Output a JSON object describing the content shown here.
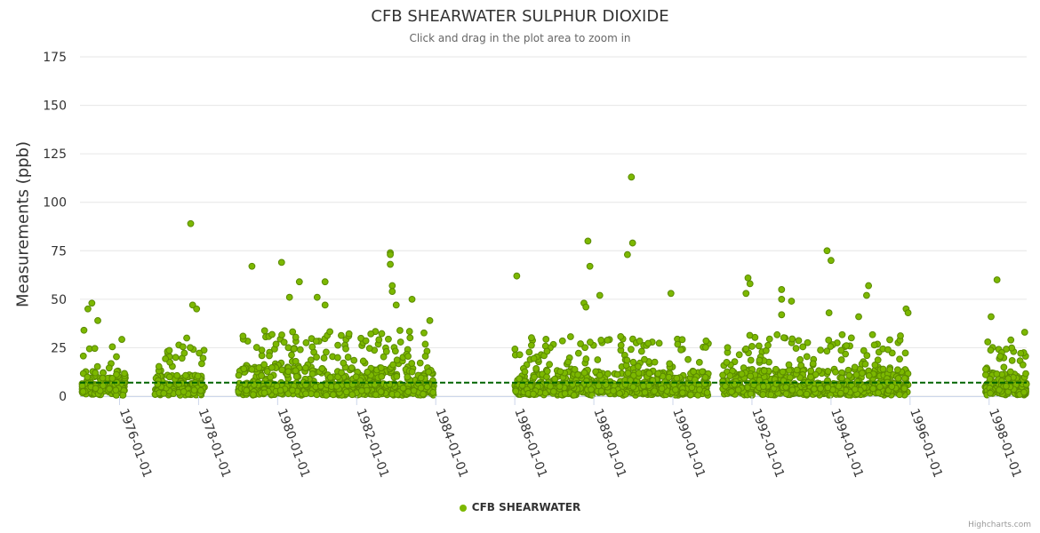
{
  "chart_data": {
    "type": "scatter",
    "title": "CFB SHEARWATER SULPHUR DIOXIDE",
    "subtitle": "Click and drag in the plot area to zoom in",
    "ylabel": "Measurements (ppb)",
    "xlabel": "",
    "ylim": [
      0,
      175
    ],
    "yticks": [
      0,
      25,
      50,
      75,
      100,
      125,
      150,
      175
    ],
    "xlim": [
      1975.0,
      1998.95
    ],
    "xticks": [
      {
        "value": 1976,
        "label": "1976-01-01"
      },
      {
        "value": 1978,
        "label": "1978-01-01"
      },
      {
        "value": 1980,
        "label": "1980-01-01"
      },
      {
        "value": 1982,
        "label": "1982-01-01"
      },
      {
        "value": 1984,
        "label": "1984-01-01"
      },
      {
        "value": 1986,
        "label": "1986-01-01"
      },
      {
        "value": 1988,
        "label": "1988-01-01"
      },
      {
        "value": 1990,
        "label": "1990-01-01"
      },
      {
        "value": 1992,
        "label": "1992-01-01"
      },
      {
        "value": 1994,
        "label": "1994-01-01"
      },
      {
        "value": 1996,
        "label": "1996-01-01"
      },
      {
        "value": 1998,
        "label": "1998-01-01"
      }
    ],
    "reference_line": {
      "value": 7,
      "style": "dashed",
      "color": "#006400"
    },
    "series": [
      {
        "name": "CFB SHEARWATER",
        "color": "#7cb800",
        "segments": [
          {
            "start": 1975.05,
            "end": 1976.15,
            "base": 11,
            "spread": 9
          },
          {
            "start": 1976.9,
            "end": 1978.15,
            "base": 9,
            "spread": 8
          },
          {
            "start": 1979.0,
            "end": 1983.95,
            "base": 13,
            "spread": 11
          },
          {
            "start": 1986.0,
            "end": 1990.9,
            "base": 11,
            "spread": 10
          },
          {
            "start": 1991.25,
            "end": 1995.95,
            "base": 12,
            "spread": 10
          },
          {
            "start": 1997.9,
            "end": 1998.95,
            "base": 10,
            "spread": 8
          }
        ],
        "highlights": [
          {
            "x": 1975.2,
            "y": 45
          },
          {
            "x": 1975.3,
            "y": 48
          },
          {
            "x": 1975.45,
            "y": 39
          },
          {
            "x": 1975.1,
            "y": 34
          },
          {
            "x": 1977.8,
            "y": 89
          },
          {
            "x": 1977.85,
            "y": 47
          },
          {
            "x": 1977.95,
            "y": 45
          },
          {
            "x": 1977.7,
            "y": 30
          },
          {
            "x": 1979.35,
            "y": 67
          },
          {
            "x": 1980.1,
            "y": 69
          },
          {
            "x": 1980.55,
            "y": 59
          },
          {
            "x": 1981.2,
            "y": 59
          },
          {
            "x": 1981.0,
            "y": 51
          },
          {
            "x": 1980.3,
            "y": 51
          },
          {
            "x": 1982.85,
            "y": 74
          },
          {
            "x": 1982.85,
            "y": 73
          },
          {
            "x": 1982.85,
            "y": 68
          },
          {
            "x": 1982.9,
            "y": 57
          },
          {
            "x": 1982.9,
            "y": 54
          },
          {
            "x": 1983.4,
            "y": 50
          },
          {
            "x": 1983.0,
            "y": 47
          },
          {
            "x": 1983.85,
            "y": 39
          },
          {
            "x": 1981.2,
            "y": 47
          },
          {
            "x": 1986.05,
            "y": 62
          },
          {
            "x": 1987.85,
            "y": 80
          },
          {
            "x": 1987.9,
            "y": 67
          },
          {
            "x": 1988.15,
            "y": 52
          },
          {
            "x": 1988.85,
            "y": 73
          },
          {
            "x": 1988.95,
            "y": 113
          },
          {
            "x": 1988.98,
            "y": 79
          },
          {
            "x": 1989.95,
            "y": 53
          },
          {
            "x": 1987.75,
            "y": 48
          },
          {
            "x": 1987.8,
            "y": 46
          },
          {
            "x": 1991.9,
            "y": 61
          },
          {
            "x": 1991.95,
            "y": 58
          },
          {
            "x": 1991.85,
            "y": 53
          },
          {
            "x": 1992.75,
            "y": 55
          },
          {
            "x": 1992.75,
            "y": 50
          },
          {
            "x": 1993.0,
            "y": 49
          },
          {
            "x": 1992.75,
            "y": 42
          },
          {
            "x": 1993.9,
            "y": 75
          },
          {
            "x": 1994.0,
            "y": 70
          },
          {
            "x": 1993.95,
            "y": 43
          },
          {
            "x": 1994.95,
            "y": 57
          },
          {
            "x": 1994.9,
            "y": 52
          },
          {
            "x": 1994.7,
            "y": 41
          },
          {
            "x": 1995.9,
            "y": 45
          },
          {
            "x": 1995.95,
            "y": 43
          },
          {
            "x": 1998.2,
            "y": 60
          },
          {
            "x": 1998.05,
            "y": 41
          },
          {
            "x": 1998.9,
            "y": 33
          },
          {
            "x": 1998.55,
            "y": 29
          }
        ]
      }
    ]
  },
  "legend": {
    "label": "CFB SHEARWATER"
  },
  "credits": "Highcharts.com"
}
